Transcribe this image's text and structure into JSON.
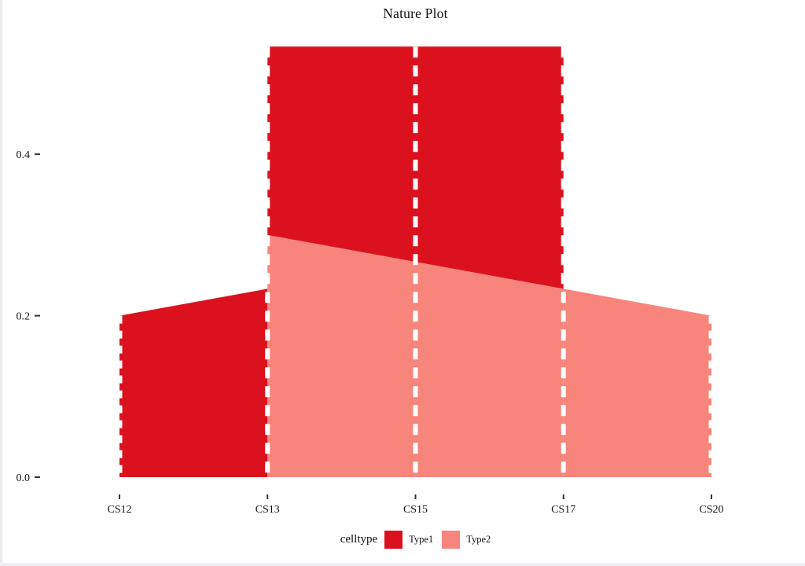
{
  "window": {
    "background": "#FFFFFF",
    "left_edge_color": "#ECECEC",
    "bottom_edge_color": "#F1F1F3"
  },
  "chart_data": {
    "type": "area",
    "title": "Nature Plot",
    "legend_title": "celltype",
    "legend_position": "bottom",
    "categories": [
      "CS12",
      "CS13",
      "CS15",
      "CS17",
      "CS20"
    ],
    "series": [
      {
        "name": "Type1",
        "color": "#DB121E",
        "values": [
          0.2,
          0.2333,
          0.2667,
          0.3,
          null
        ]
      },
      {
        "name": "Type2",
        "color": "#F8857B",
        "values": [
          null,
          0.3,
          0.2667,
          0.2333,
          0.2
        ]
      }
    ],
    "stack_order_bottom_to_top": [
      "Type2",
      "Type1"
    ],
    "stacked_total_plateau": 0.5333,
    "yticks": [
      0.0,
      0.2,
      0.4
    ],
    "ytick_labels": [
      "0.0",
      "0.2",
      "0.4"
    ],
    "ylim": [
      0,
      0.5333
    ],
    "grid": false,
    "separator_style": "white dashed vertical lines at each stage",
    "axis_text_color": "#111111",
    "tick_color": "#333333",
    "divider_color": "#FFFFFF"
  }
}
